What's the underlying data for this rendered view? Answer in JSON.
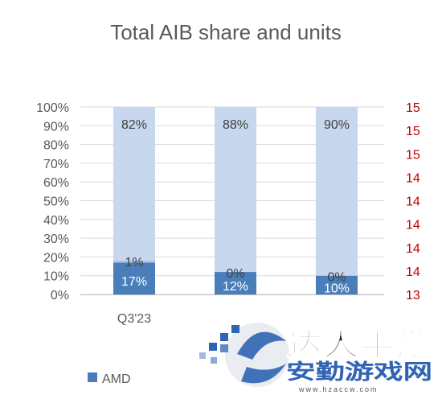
{
  "chart_data": {
    "type": "bar",
    "stacked": true,
    "title": "Total AIB share and units",
    "categories": [
      "Q3'23",
      "",
      ""
    ],
    "series": [
      {
        "name": "AMD",
        "values": [
          17,
          12,
          10
        ],
        "labels": [
          "17%",
          "12%",
          "10%"
        ],
        "color": "#4a7ebb"
      },
      {
        "values": [
          1,
          0,
          0
        ],
        "labels": [
          "1%",
          "0%",
          "0%"
        ],
        "color": "#a9c1e2"
      },
      {
        "values": [
          82,
          88,
          90
        ],
        "labels": [
          "82%",
          "88%",
          "90%"
        ],
        "color": "#c6d7ee"
      }
    ],
    "y_left": {
      "ylim": [
        0,
        100
      ],
      "ticks": [
        "0%",
        "10%",
        "20%",
        "30%",
        "40%",
        "50%",
        "60%",
        "70%",
        "80%",
        "90%",
        "100%"
      ]
    },
    "y_right": {
      "ticks": [
        "13",
        "14",
        "14",
        "14",
        "14",
        "14",
        "15",
        "15",
        "15"
      ],
      "color": "#c00000"
    },
    "grid": true,
    "legend": {
      "position": "bottom-left",
      "entries": [
        "AMD"
      ]
    },
    "watermark": {
      "text_line1": "达人手游",
      "text_line2": "安勤游戏网",
      "url": "www.hzaccw.com"
    }
  }
}
